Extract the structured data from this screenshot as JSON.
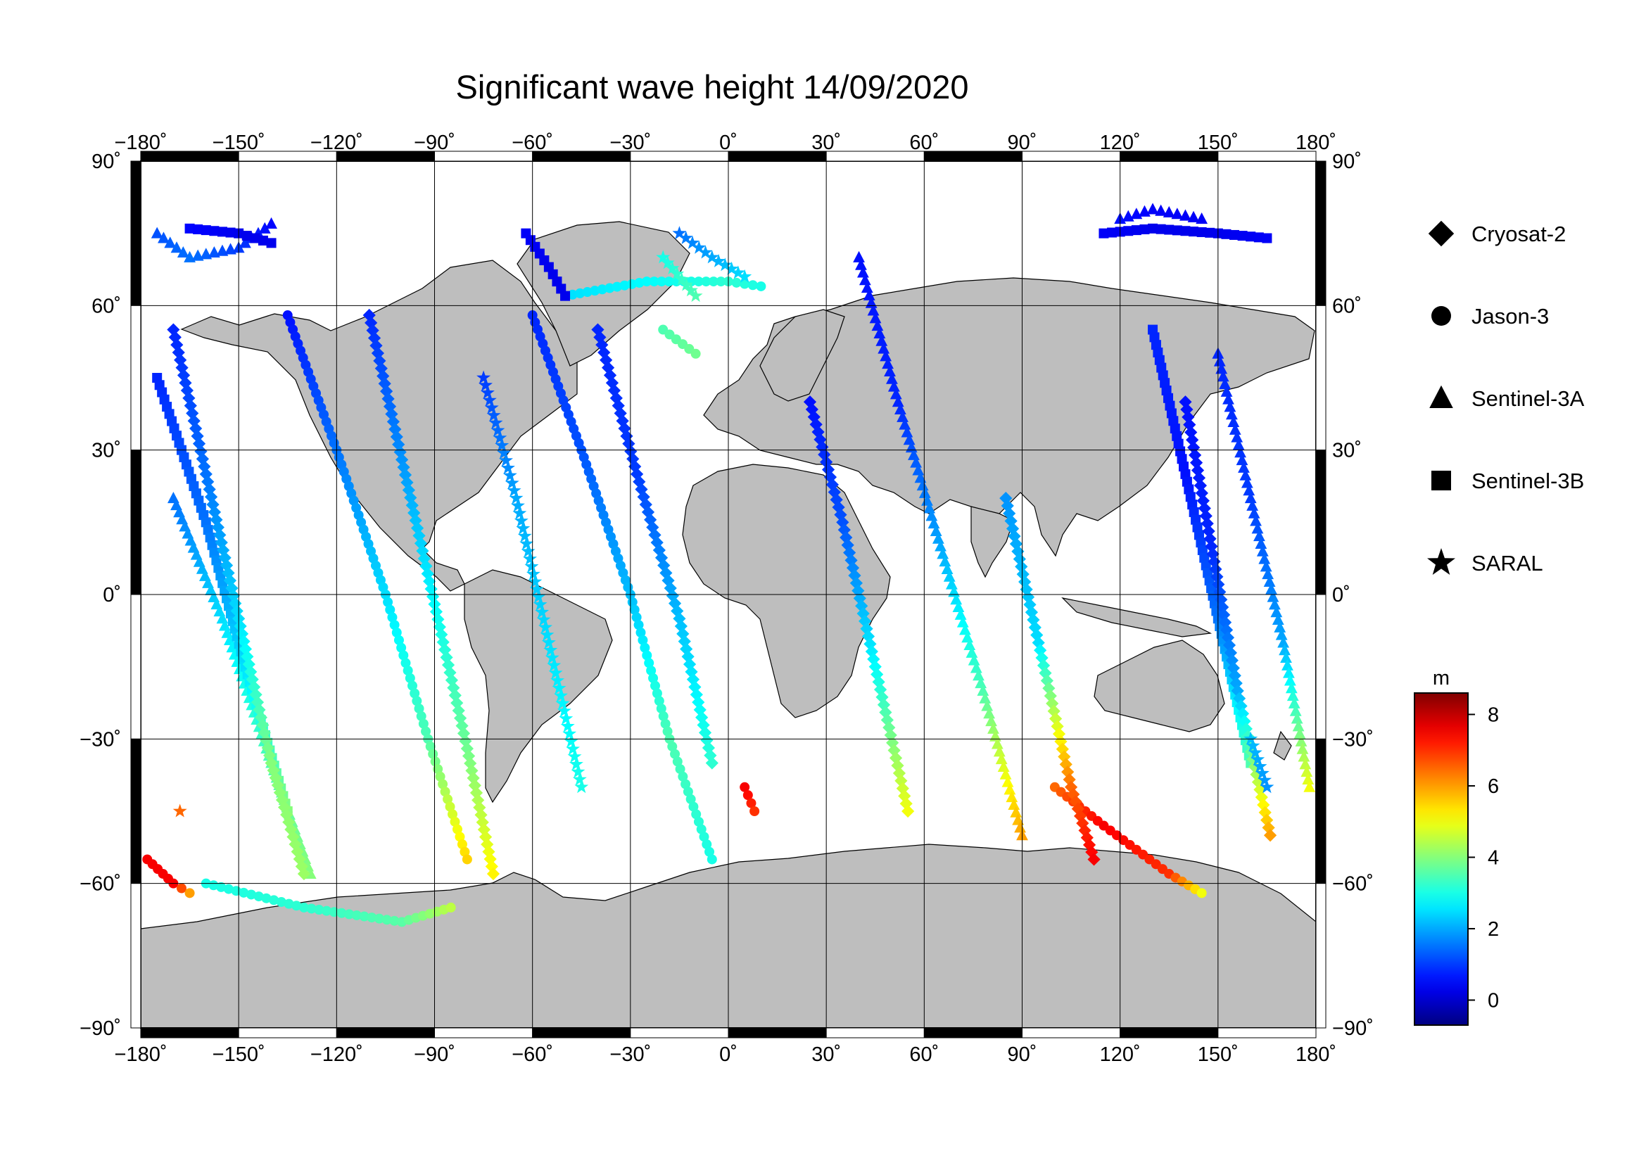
{
  "title": "Significant wave height 14/09/2020",
  "map": {
    "projection": "plate-carree",
    "lon_range": [
      -180,
      180
    ],
    "lat_range": [
      -90,
      90
    ],
    "land_color": "#bebebe",
    "ocean_color": "#ffffff",
    "grid": true,
    "lon_ticks": [
      -180,
      -150,
      -120,
      -90,
      -60,
      -30,
      0,
      30,
      60,
      90,
      120,
      150,
      180
    ],
    "lat_ticks": [
      90,
      60,
      30,
      0,
      -30,
      -60,
      -90
    ],
    "lon_tick_labels": [
      "−180˚",
      "−150˚",
      "−120˚",
      "−90˚",
      "−60˚",
      "−30˚",
      "0˚",
      "30˚",
      "60˚",
      "90˚",
      "120˚",
      "150˚",
      "180˚"
    ],
    "lat_tick_labels": [
      "90˚",
      "60˚",
      "30˚",
      "0˚",
      "−30˚",
      "−60˚",
      "−90˚"
    ]
  },
  "legend": {
    "placement": "right",
    "items": [
      {
        "label": "Cryosat-2",
        "marker": "diamond"
      },
      {
        "label": "Jason-3",
        "marker": "circle"
      },
      {
        "label": "Sentinel-3A",
        "marker": "triangle"
      },
      {
        "label": "Sentinel-3B",
        "marker": "square"
      },
      {
        "label": "SARAL",
        "marker": "star"
      }
    ]
  },
  "colorbar": {
    "unit": "m",
    "range": [
      -0.7,
      8.6
    ],
    "ticks": [
      0,
      2,
      4,
      6,
      8
    ],
    "tick_labels": [
      "0",
      "2",
      "4",
      "6",
      "8"
    ],
    "colormap": "jet"
  },
  "chart_data": {
    "type": "scatter",
    "title": "Significant wave height 14/09/2020",
    "xlabel": "",
    "ylabel": "",
    "xlim": [
      -180,
      180
    ],
    "ylim": [
      -90,
      90
    ],
    "value_unit": "m",
    "tracks": [
      {
        "mission": "Jason-3",
        "marker": "circle",
        "segments": [
          [
            [
              -135,
              58,
              0.6
            ],
            [
              -120,
              30,
              1.5
            ],
            [
              -105,
              0,
              2.5
            ],
            [
              -92,
              -30,
              3.5
            ],
            [
              -80,
              -55,
              5.5
            ]
          ],
          [
            [
              -60,
              58,
              0.8
            ],
            [
              -45,
              30,
              1.2
            ],
            [
              -30,
              0,
              2.2
            ],
            [
              -18,
              -30,
              3.5
            ],
            [
              -5,
              -55,
              3.0
            ]
          ],
          [
            [
              -160,
              -60,
              3.0
            ],
            [
              -130,
              -65,
              3.2
            ],
            [
              -100,
              -68,
              3.6
            ],
            [
              -85,
              -65,
              4.5
            ]
          ],
          [
            [
              -50,
              62,
              2.5
            ],
            [
              -25,
              65,
              2.8
            ],
            [
              0,
              65,
              3.2
            ],
            [
              10,
              64,
              3.0
            ]
          ],
          [
            [
              -20,
              55,
              3.5
            ],
            [
              -10,
              50,
              3.8
            ]
          ],
          [
            [
              100,
              -40,
              6.5
            ],
            [
              115,
              -48,
              7.5
            ],
            [
              135,
              -58,
              7.0
            ],
            [
              145,
              -62,
              5.0
            ]
          ],
          [
            [
              5,
              -40,
              7.5
            ],
            [
              8,
              -45,
              7.0
            ]
          ],
          [
            [
              -178,
              -55,
              7.5
            ],
            [
              -170,
              -60,
              7.5
            ],
            [
              -165,
              -62,
              6.0
            ]
          ]
        ]
      },
      {
        "mission": "Sentinel-3A",
        "marker": "triangle",
        "segments": [
          [
            [
              -175,
              75,
              1.2
            ],
            [
              -165,
              70,
              1.5
            ],
            [
              -150,
              72,
              1.0
            ],
            [
              -140,
              77,
              0.5
            ]
          ],
          [
            [
              120,
              78,
              0.6
            ],
            [
              130,
              80,
              0.4
            ],
            [
              145,
              78,
              0.4
            ]
          ],
          [
            [
              -170,
              20,
              1.5
            ],
            [
              -155,
              -5,
              2.5
            ],
            [
              -140,
              -35,
              3.5
            ],
            [
              -128,
              -58,
              4.0
            ]
          ],
          [
            [
              40,
              70,
              0.6
            ],
            [
              52,
              40,
              0.8
            ],
            [
              65,
              10,
              2.0
            ],
            [
              78,
              -20,
              3.5
            ],
            [
              90,
              -50,
              6.0
            ]
          ],
          [
            [
              150,
              50,
              0.8
            ],
            [
              160,
              20,
              1.0
            ],
            [
              170,
              -10,
              2.0
            ],
            [
              178,
              -40,
              5.0
            ]
          ]
        ]
      },
      {
        "mission": "Sentinel-3B",
        "marker": "square",
        "segments": [
          [
            [
              -165,
              76,
              0.5
            ],
            [
              -150,
              75,
              0.3
            ],
            [
              -140,
              73,
              0.3
            ]
          ],
          [
            [
              115,
              75,
              0.4
            ],
            [
              130,
              76,
              0.3
            ],
            [
              150,
              75,
              0.3
            ],
            [
              165,
              74,
              0.4
            ]
          ],
          [
            [
              -62,
              75,
              0.4
            ],
            [
              -55,
              68,
              0.3
            ],
            [
              -50,
              62,
              0.3
            ]
          ],
          [
            [
              -175,
              45,
              0.8
            ],
            [
              -160,
              15,
              1.5
            ],
            [
              -148,
              -15,
              2.5
            ],
            [
              -135,
              -45,
              4.0
            ]
          ],
          [
            [
              130,
              55,
              0.8
            ],
            [
              140,
              25,
              0.6
            ],
            [
              150,
              -5,
              1.5
            ],
            [
              160,
              -35,
              3.5
            ]
          ]
        ]
      },
      {
        "mission": "Cryosat-2",
        "marker": "diamond",
        "segments": [
          [
            [
              -170,
              55,
              0.8
            ],
            [
              -160,
              25,
              1.5
            ],
            [
              -150,
              -5,
              2.5
            ],
            [
              -140,
              -35,
              4.0
            ],
            [
              -130,
              -58,
              4.2
            ]
          ],
          [
            [
              -110,
              58,
              0.8
            ],
            [
              -100,
              28,
              1.8
            ],
            [
              -90,
              -2,
              2.8
            ],
            [
              -80,
              -32,
              3.8
            ],
            [
              -72,
              -58,
              5.2
            ]
          ],
          [
            [
              25,
              40,
              0.6
            ],
            [
              35,
              15,
              1.2
            ],
            [
              45,
              -15,
              2.8
            ],
            [
              55,
              -45,
              5.0
            ]
          ],
          [
            [
              85,
              20,
              1.8
            ],
            [
              95,
              -10,
              2.5
            ],
            [
              105,
              -40,
              6.5
            ],
            [
              112,
              -55,
              7.5
            ]
          ],
          [
            [
              140,
              40,
              0.6
            ],
            [
              148,
              10,
              0.8
            ],
            [
              156,
              -20,
              2.0
            ],
            [
              166,
              -50,
              6.0
            ]
          ],
          [
            [
              -40,
              55,
              0.8
            ],
            [
              -28,
              25,
              1.0
            ],
            [
              -15,
              -5,
              2.2
            ],
            [
              -5,
              -35,
              3.2
            ]
          ]
        ]
      },
      {
        "mission": "SARAL",
        "marker": "star",
        "segments": [
          [
            [
              -15,
              75,
              1.5
            ],
            [
              -5,
              70,
              2.0
            ],
            [
              5,
              66,
              2.5
            ]
          ],
          [
            [
              -10,
              62,
              3.5
            ],
            [
              -20,
              70,
              3.0
            ]
          ],
          [
            [
              160,
              -30,
              2.2
            ],
            [
              165,
              -40,
              1.8
            ]
          ],
          [
            [
              -168,
              -45,
              6.5
            ]
          ],
          [
            [
              -75,
              45,
              1.0
            ],
            [
              -65,
              20,
              2.0
            ],
            [
              -55,
              -10,
              2.5
            ],
            [
              -45,
              -40,
              3.0
            ]
          ]
        ]
      }
    ]
  }
}
